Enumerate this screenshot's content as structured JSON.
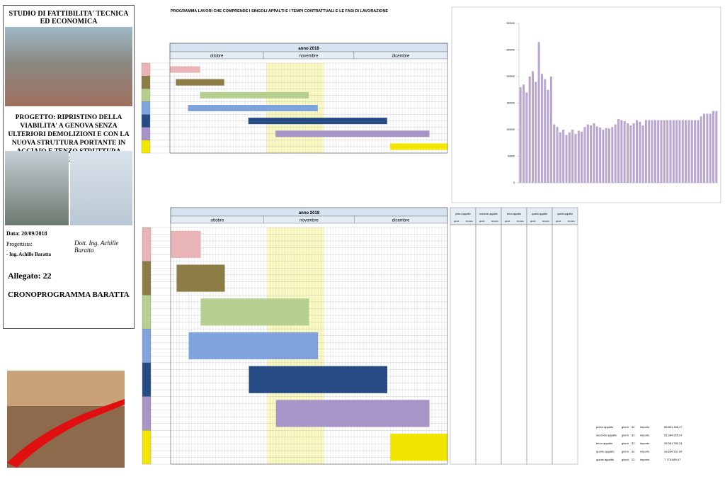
{
  "cover": {
    "header": "STUDIO DI FATTIBILITA' TECNICA ED ECONOMICA",
    "project": "PROGETTO: RIPRISTINO DELLA VIABILITA' A GENOVA SENZA ULTERIORI DEMOLIZIONI E CON LA NUOVA STRUTTURA PORTANTE IN ACCIAIO E TENZO STRUTTURA TEMPI DI ESECUZIONE E COSTI",
    "date": "Data: 20/09/2018",
    "designer_label": "Progettista:",
    "designer": "- Ing. Achille Baratta",
    "signature": "Dott. Ing. Achille Baratta",
    "attachment": "Allegato: 22",
    "doc_title": "CRONOPROGRAMMA BARATTA"
  },
  "schedule": {
    "title": "PROGRAMMA LAVORI  CHE COMPRENDE I SINGOLI APPALTI E I TEMPI CONTRATTUALI E LE FASI DI LAVORAZIONE",
    "year": "anno 2018",
    "months": [
      "ottobre",
      "novembre",
      "dicembre"
    ],
    "xlim": [
      0,
      92
    ],
    "phases": [
      {
        "color": "#e8b4b8",
        "start": 0,
        "end": 10
      },
      {
        "color": "#8b7d45",
        "start": 2,
        "end": 18
      },
      {
        "color": "#b5cf8e",
        "start": 10,
        "end": 46
      },
      {
        "color": "#7fa3dc",
        "start": 6,
        "end": 49
      },
      {
        "color": "#274b84",
        "start": 26,
        "end": 72
      },
      {
        "color": "#a895c8",
        "start": 35,
        "end": 86
      },
      {
        "color": "#f2e600",
        "start": 73,
        "end": 92
      }
    ],
    "contracts": [
      "primo appalto",
      "secondo appalto",
      "terzo appalto",
      "quarto appalto",
      "quinto appalto"
    ],
    "col_days": "giorni",
    "col_amount": "importo",
    "summary": [
      {
        "name": "primo appalto",
        "days": 32,
        "amount": "55.601.166,27"
      },
      {
        "name": "secondo appalto",
        "days": 32,
        "amount": "61.384.925,97"
      },
      {
        "name": "terzo appalto",
        "days": 32,
        "amount": "26.581.782,31"
      },
      {
        "name": "quarto appalto",
        "days": 32,
        "amount": "28.654.157,54"
      },
      {
        "name": "quinto appalto",
        "days": 22,
        "amount": "7.775.689,47"
      }
    ]
  },
  "chart_data": {
    "type": "bar",
    "color": "#b8a6cf",
    "ylim": [
      0,
      300000
    ],
    "yticks": [
      0,
      50000,
      100000,
      150000,
      200000,
      250000,
      300000
    ],
    "values": [
      180000,
      185000,
      170000,
      200000,
      210000,
      190000,
      265000,
      205000,
      195000,
      175000,
      200000,
      110000,
      105000,
      95000,
      100000,
      90000,
      95000,
      100000,
      92000,
      98000,
      96000,
      105000,
      110000,
      108000,
      112000,
      106000,
      104000,
      100000,
      103000,
      102000,
      105000,
      110000,
      120000,
      118000,
      116000,
      112000,
      108000,
      112000,
      118000,
      115000,
      108000,
      118000,
      118000,
      118000,
      118000,
      118000,
      118000,
      118000,
      118000,
      118000,
      118000,
      118000,
      118000,
      118000,
      118000,
      118000,
      118000,
      118000,
      118000,
      125000,
      130000,
      130000,
      130000,
      135000,
      135000
    ]
  }
}
